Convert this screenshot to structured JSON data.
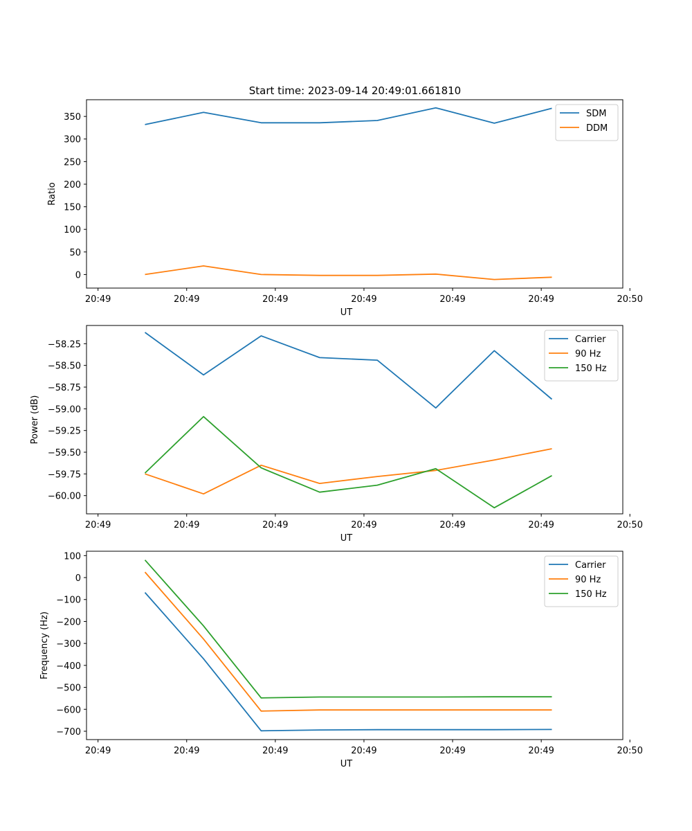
{
  "figure_title": "Start time: 2023-09-14 20:49:01.661810",
  "colors": {
    "blue": "#1f77b4",
    "orange": "#ff7f0e",
    "green": "#2ca02c"
  },
  "chart_data": [
    {
      "type": "line",
      "title": "Start time: 2023-09-14 20:49:01.661810",
      "xlabel": "UT",
      "ylabel": "Ratio",
      "x": [
        0.53,
        1.19,
        1.84,
        2.5,
        3.15,
        3.81,
        4.47,
        5.12
      ],
      "xlim": [
        -0.13,
        5.92
      ],
      "xticks": [
        0,
        1,
        2,
        3,
        4,
        5,
        6
      ],
      "xtick_labels": [
        "20:49",
        "20:49",
        "20:49",
        "20:49",
        "20:49",
        "20:49",
        "20:50"
      ],
      "ylim": [
        -30,
        387
      ],
      "yticks": [
        0,
        50,
        100,
        150,
        200,
        250,
        300,
        350
      ],
      "ytick_labels": [
        "0",
        "50",
        "100",
        "150",
        "200",
        "250",
        "300",
        "350"
      ],
      "legend": "top-right",
      "series": [
        {
          "name": "SDM",
          "color": "#1f77b4",
          "values": [
            332,
            359,
            336,
            336,
            341,
            369,
            335,
            368
          ]
        },
        {
          "name": "DDM",
          "color": "#ff7f0e",
          "values": [
            0,
            19,
            0,
            -2,
            -2,
            1,
            -11,
            -6
          ]
        }
      ]
    },
    {
      "type": "line",
      "xlabel": "UT",
      "ylabel": "Power (dB)",
      "x": [
        0.53,
        1.19,
        1.84,
        2.5,
        3.15,
        3.81,
        4.47,
        5.12
      ],
      "xlim": [
        -0.13,
        5.92
      ],
      "xticks": [
        0,
        1,
        2,
        3,
        4,
        5,
        6
      ],
      "xtick_labels": [
        "20:49",
        "20:49",
        "20:49",
        "20:49",
        "20:49",
        "20:49",
        "20:50"
      ],
      "ylim": [
        -60.21,
        -58.04
      ],
      "yticks": [
        -58.25,
        -58.5,
        -58.75,
        -59.0,
        -59.25,
        -59.5,
        -59.75,
        -60.0
      ],
      "ytick_labels": [
        "−58.25",
        "−58.50",
        "−58.75",
        "−59.00",
        "−59.25",
        "−59.50",
        "−59.75",
        "−60.00"
      ],
      "legend": "top-right",
      "series": [
        {
          "name": "Carrier",
          "color": "#1f77b4",
          "values": [
            -58.12,
            -58.61,
            -58.16,
            -58.41,
            -58.44,
            -58.99,
            -58.33,
            -58.89
          ]
        },
        {
          "name": "90 Hz",
          "color": "#ff7f0e",
          "values": [
            -59.75,
            -59.98,
            -59.65,
            -59.86,
            -59.78,
            -59.71,
            -59.59,
            -59.46
          ]
        },
        {
          "name": "150 Hz",
          "color": "#2ca02c",
          "values": [
            -59.74,
            -59.09,
            -59.68,
            -59.96,
            -59.88,
            -59.69,
            -60.14,
            -59.77
          ]
        }
      ]
    },
    {
      "type": "line",
      "xlabel": "UT",
      "ylabel": "Frequency (Hz)",
      "x": [
        0.53,
        1.19,
        1.84,
        2.5,
        3.15,
        3.81,
        4.47,
        5.12
      ],
      "xlim": [
        -0.13,
        5.92
      ],
      "xticks": [
        0,
        1,
        2,
        3,
        4,
        5,
        6
      ],
      "xtick_labels": [
        "20:49",
        "20:49",
        "20:49",
        "20:49",
        "20:49",
        "20:49",
        "20:50"
      ],
      "ylim": [
        -738,
        120
      ],
      "yticks": [
        100,
        0,
        -100,
        -200,
        -300,
        -400,
        -500,
        -600,
        -700
      ],
      "ytick_labels": [
        "100",
        "0",
        "−100",
        "−200",
        "−300",
        "−400",
        "−500",
        "−600",
        "−700"
      ],
      "legend": "top-right",
      "series": [
        {
          "name": "Carrier",
          "color": "#1f77b4",
          "values": [
            -68,
            -370,
            -698,
            -694,
            -693,
            -693,
            -693,
            -692
          ]
        },
        {
          "name": "90 Hz",
          "color": "#ff7f0e",
          "values": [
            25,
            -280,
            -608,
            -603,
            -603,
            -603,
            -603,
            -603
          ]
        },
        {
          "name": "150 Hz",
          "color": "#2ca02c",
          "values": [
            80,
            -220,
            -548,
            -544,
            -544,
            -544,
            -543,
            -543
          ]
        }
      ]
    }
  ]
}
